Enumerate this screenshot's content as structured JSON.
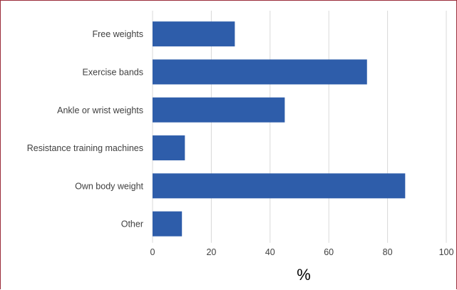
{
  "chart_data": {
    "type": "bar",
    "orientation": "horizontal",
    "categories": [
      "Free weights",
      "Exercise bands",
      "Ankle or wrist weights",
      "Resistance training machines",
      "Own body weight",
      "Other"
    ],
    "values": [
      28,
      73,
      45,
      11,
      86,
      10
    ],
    "xlabel": "%",
    "ylabel": "",
    "xlim": [
      0,
      100
    ],
    "xticks": [
      "0",
      "20",
      "40",
      "60",
      "80",
      "100"
    ],
    "grid": true,
    "legend": "none",
    "bar_color": "#2e5daa",
    "grid_color": "#d9d9d9",
    "frame_color": "#9b2d3a"
  }
}
